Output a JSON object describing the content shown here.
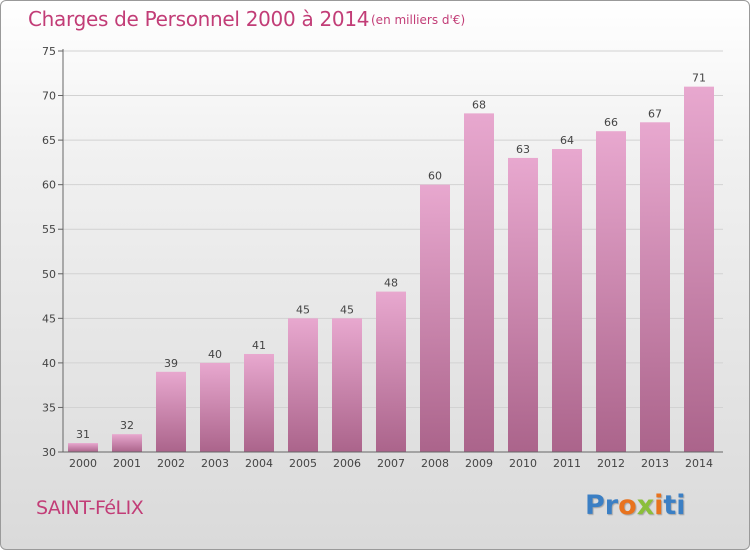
{
  "header": {
    "title": "Charges de Personnel 2000 à 2014",
    "subtitle": "(en milliers d'€)"
  },
  "footer": {
    "place": "SAINT-FéLIX",
    "logo": "Proxiti"
  },
  "colors": {
    "title": "#c23d77",
    "bar_top": "#e8a8cf",
    "bar_bottom": "#ab648b",
    "logo_letters": [
      "#3b7fc4",
      "#3b7fc4",
      "#e8731e",
      "#8bbf3a",
      "#e8731e",
      "#3b7fc4",
      "#3b7fc4"
    ]
  },
  "chart_data": {
    "type": "bar",
    "categories": [
      "2000",
      "2001",
      "2002",
      "2003",
      "2004",
      "2005",
      "2006",
      "2007",
      "2008",
      "2009",
      "2010",
      "2011",
      "2012",
      "2013",
      "2014"
    ],
    "values": [
      31,
      32,
      39,
      40,
      41,
      45,
      45,
      48,
      60,
      68,
      63,
      64,
      66,
      67,
      71
    ],
    "ylim": [
      30,
      75
    ],
    "yticks": [
      30,
      35,
      40,
      45,
      50,
      55,
      60,
      65,
      70,
      75
    ],
    "grid": true,
    "title": "Charges de Personnel 2000 à 2014",
    "xlabel": "",
    "ylabel": ""
  }
}
